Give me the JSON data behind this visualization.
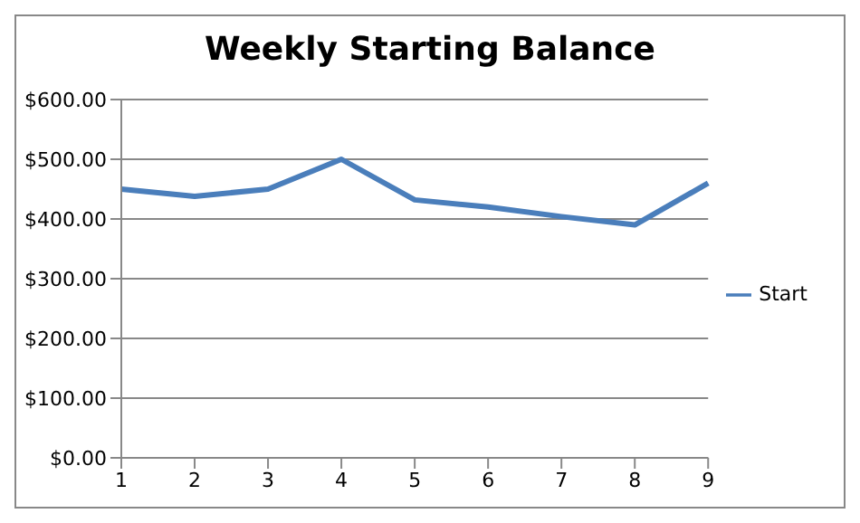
{
  "chart_data": {
    "type": "line",
    "title": "Weekly Starting Balance",
    "categories": [
      "1",
      "2",
      "3",
      "4",
      "5",
      "6",
      "7",
      "8",
      "9"
    ],
    "series": [
      {
        "name": "Start",
        "color": "#4a7ebb",
        "values": [
          450,
          438,
          450,
          500,
          432,
          420,
          404,
          390,
          460
        ]
      }
    ],
    "ylim": [
      0,
      600
    ],
    "yticks": [
      {
        "value": 0,
        "label": "$0.00"
      },
      {
        "value": 100,
        "label": "$100.00"
      },
      {
        "value": 200,
        "label": "$200.00"
      },
      {
        "value": 300,
        "label": "$300.00"
      },
      {
        "value": 400,
        "label": "$400.00"
      },
      {
        "value": 500,
        "label": "$500.00"
      },
      {
        "value": 600,
        "label": "$600.00"
      }
    ],
    "grid": "y",
    "legend": "right",
    "marker": "none",
    "line_style": "solid"
  }
}
